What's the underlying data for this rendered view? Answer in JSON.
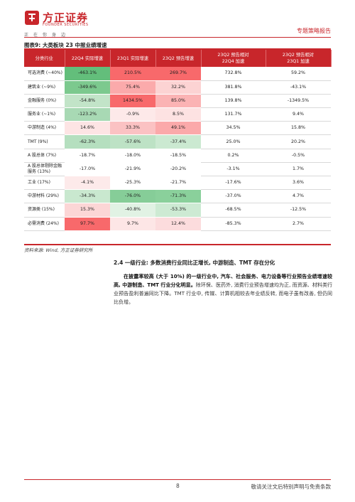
{
  "header": {
    "logo_cn": "方正证券",
    "logo_en": "FOUNDER SECURITIES",
    "slogan": "正在你身边",
    "report_type": "专题策略报告"
  },
  "figure": {
    "title": "图表9: 大类板块 23 中报业绩增速",
    "columns": [
      "分类行业",
      "22Q4 实际增速",
      "23Q1 实际增速",
      "23Q2 预告增速",
      "23Q2 预告相对\n22Q4 加速",
      "23Q2 预告相对\n23Q1 加速"
    ],
    "rows": [
      {
        "cat": "可选消费 (~40%)",
        "v": [
          "-463.1%",
          "210.5%",
          "269.7%",
          "732.8%",
          "59.2%"
        ]
      },
      {
        "cat": "建筑业 (~9%)",
        "v": [
          "-349.6%",
          "75.4%",
          "32.2%",
          "381.8%",
          "-43.1%"
        ]
      },
      {
        "cat": "金融服务 (0%)",
        "v": [
          "-54.8%",
          "1434.5%",
          "85.0%",
          "139.8%",
          "-1349.5%"
        ]
      },
      {
        "cat": "服务业 (~1%)",
        "v": [
          "-123.2%",
          "-0.9%",
          "8.5%",
          "131.7%",
          "9.4%"
        ]
      },
      {
        "cat": "中游制造 (4%)",
        "v": [
          "14.6%",
          "33.3%",
          "49.1%",
          "34.5%",
          "15.8%"
        ]
      },
      {
        "cat": "TMT (9%)",
        "v": [
          "-62.3%",
          "-57.6%",
          "-37.4%",
          "25.0%",
          "20.2%"
        ]
      },
      {
        "cat": "A 股总体 (7%)",
        "v": [
          "-18.7%",
          "-18.0%",
          "-18.5%",
          "0.2%",
          "-0.5%"
        ]
      },
      {
        "cat": "A 股总体剔除金融\n服务 (13%)",
        "v": [
          "-17.0%",
          "-21.9%",
          "-20.2%",
          "-3.1%",
          "1.7%"
        ]
      },
      {
        "cat": "工业 (17%)",
        "v": [
          "-4.1%",
          "-25.3%",
          "-21.7%",
          "-17.6%",
          "3.6%"
        ]
      },
      {
        "cat": "中游材料 (29%)",
        "v": [
          "-34.3%",
          "-76.0%",
          "-71.3%",
          "-37.0%",
          "4.7%"
        ]
      },
      {
        "cat": "资源类 (15%)",
        "v": [
          "15.3%",
          "-40.8%",
          "-53.3%",
          "-68.5%",
          "-12.5%"
        ]
      },
      {
        "cat": "必需消费 (24%)",
        "v": [
          "97.7%",
          "9.7%",
          "12.4%",
          "-85.3%",
          "2.7%"
        ]
      }
    ],
    "cell_colors": [
      [
        "#63be7b",
        "#f8696b",
        "#f8696b"
      ],
      [
        "#7cc98e",
        "#fbaaab",
        "#fcd3d3"
      ],
      [
        "#c2e4c8",
        "#f8696b",
        "#fbb3b4"
      ],
      [
        "#a8d9b4",
        "#fde9e9",
        "#fde2e2"
      ],
      [
        "#fde4e4",
        "#fbc2c3",
        "#fba9aa"
      ],
      [
        "#b5dfbf",
        "#bde2c5",
        "#cbe9d1"
      ],
      [
        "#ffffff",
        "#ffffff",
        "#ffffff"
      ],
      [
        "#ffffff",
        "#ffffff",
        "#ffffff"
      ],
      [
        "#fdeaea",
        "#ffffff",
        "#ffffff"
      ],
      [
        "#c9e8cf",
        "#86cd98",
        "#8ad09b"
      ],
      [
        "#fcd6d6",
        "#e1f2e4",
        "#cdeaD3"
      ],
      [
        "#f8696b",
        "#fde6e6",
        "#fcdcdd"
      ]
    ],
    "source": "资料来源: Wind, 方正证券研究所"
  },
  "section": {
    "title": "2.4 一级行业: 多数消费行业同比正增长, 中游制造、TMT 存在分化",
    "body_bold": "在披露率较高 (大于 10%) 的一级行业中, 汽车、社会服务、电力设备等行业预告业绩增速较高, 中游制造、TMT 行业分化明显。",
    "body_rest": "除环保、医药外, 消费行业预告增速均为正, 而资源、材料类行业预告盈利普遍同比下降。TMT 行业中, 传媒、计算机相较去年业绩反转, 而电子虽有改善, 但仍同比负增。"
  },
  "footer": {
    "page": "8",
    "disclaimer": "敬请关注文后特别声明与免责条款"
  }
}
